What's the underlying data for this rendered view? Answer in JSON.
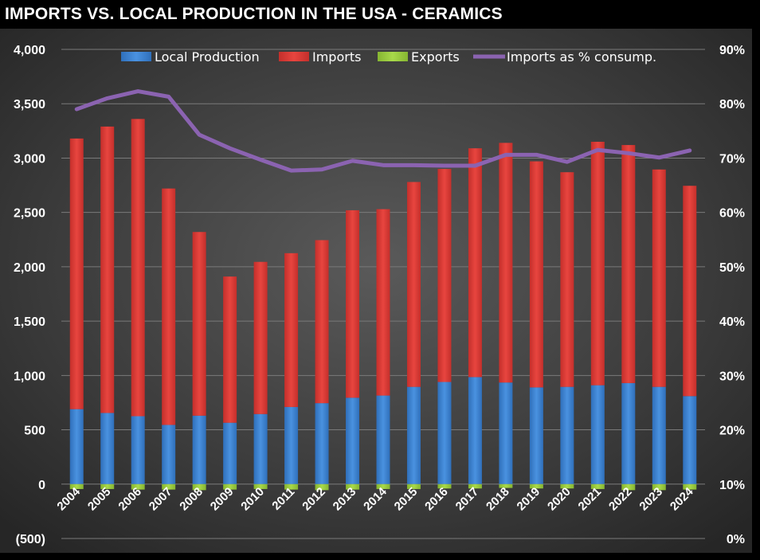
{
  "chart_data": {
    "type": "bar",
    "title": "IMPORTS VS. LOCAL PRODUCTION IN THE USA - CERAMICS",
    "categories": [
      "2004",
      "2005",
      "2006",
      "2007",
      "2008",
      "2009",
      "2010",
      "2011",
      "2012",
      "2013",
      "2014",
      "2015",
      "2016",
      "2017",
      "2018",
      "2019",
      "2020",
      "2021",
      "2022",
      "2023",
      "2024"
    ],
    "series": [
      {
        "name": "Local Production",
        "kind": "bar",
        "axis": "left",
        "color": "#3e86d6",
        "values": [
          690,
          655,
          625,
          545,
          630,
          565,
          645,
          710,
          745,
          795,
          815,
          895,
          940,
          985,
          935,
          890,
          895,
          910,
          930,
          895,
          810
        ]
      },
      {
        "name": "Imports",
        "kind": "bar",
        "axis": "left",
        "color": "#de3b36",
        "values": [
          2490,
          2635,
          2735,
          2175,
          1690,
          1345,
          1400,
          1415,
          1500,
          1725,
          1715,
          1885,
          1960,
          2105,
          2205,
          2080,
          1975,
          2240,
          2190,
          2000,
          1935
        ]
      },
      {
        "name": "Exports",
        "kind": "bar",
        "axis": "left",
        "color": "#9ccc3e",
        "values": [
          -45,
          -45,
          -50,
          -50,
          -55,
          -50,
          -45,
          -50,
          -55,
          -50,
          -45,
          -45,
          -40,
          -40,
          -35,
          -40,
          -40,
          -45,
          -55,
          -55,
          -50
        ]
      },
      {
        "name": "Imports as % consump.",
        "kind": "line",
        "axis": "right",
        "color": "#8b63b1",
        "values": [
          0.79,
          0.81,
          0.823,
          0.813,
          0.743,
          0.718,
          0.697,
          0.677,
          0.679,
          0.695,
          0.687,
          0.687,
          0.686,
          0.686,
          0.706,
          0.706,
          0.693,
          0.715,
          0.709,
          0.701,
          0.714
        ]
      }
    ],
    "ylim_left": [
      -500,
      4000
    ],
    "yticks_left": [
      "(500)",
      "0",
      "500",
      "1,000",
      "1,500",
      "2,000",
      "2,500",
      "3,000",
      "3,500",
      "4,000"
    ],
    "ylim_right": [
      0,
      0.9
    ],
    "yticks_right": [
      "0%",
      "10%",
      "20%",
      "30%",
      "40%",
      "50%",
      "60%",
      "70%",
      "80%",
      "90%"
    ],
    "grid": true,
    "legend_position": "top"
  }
}
